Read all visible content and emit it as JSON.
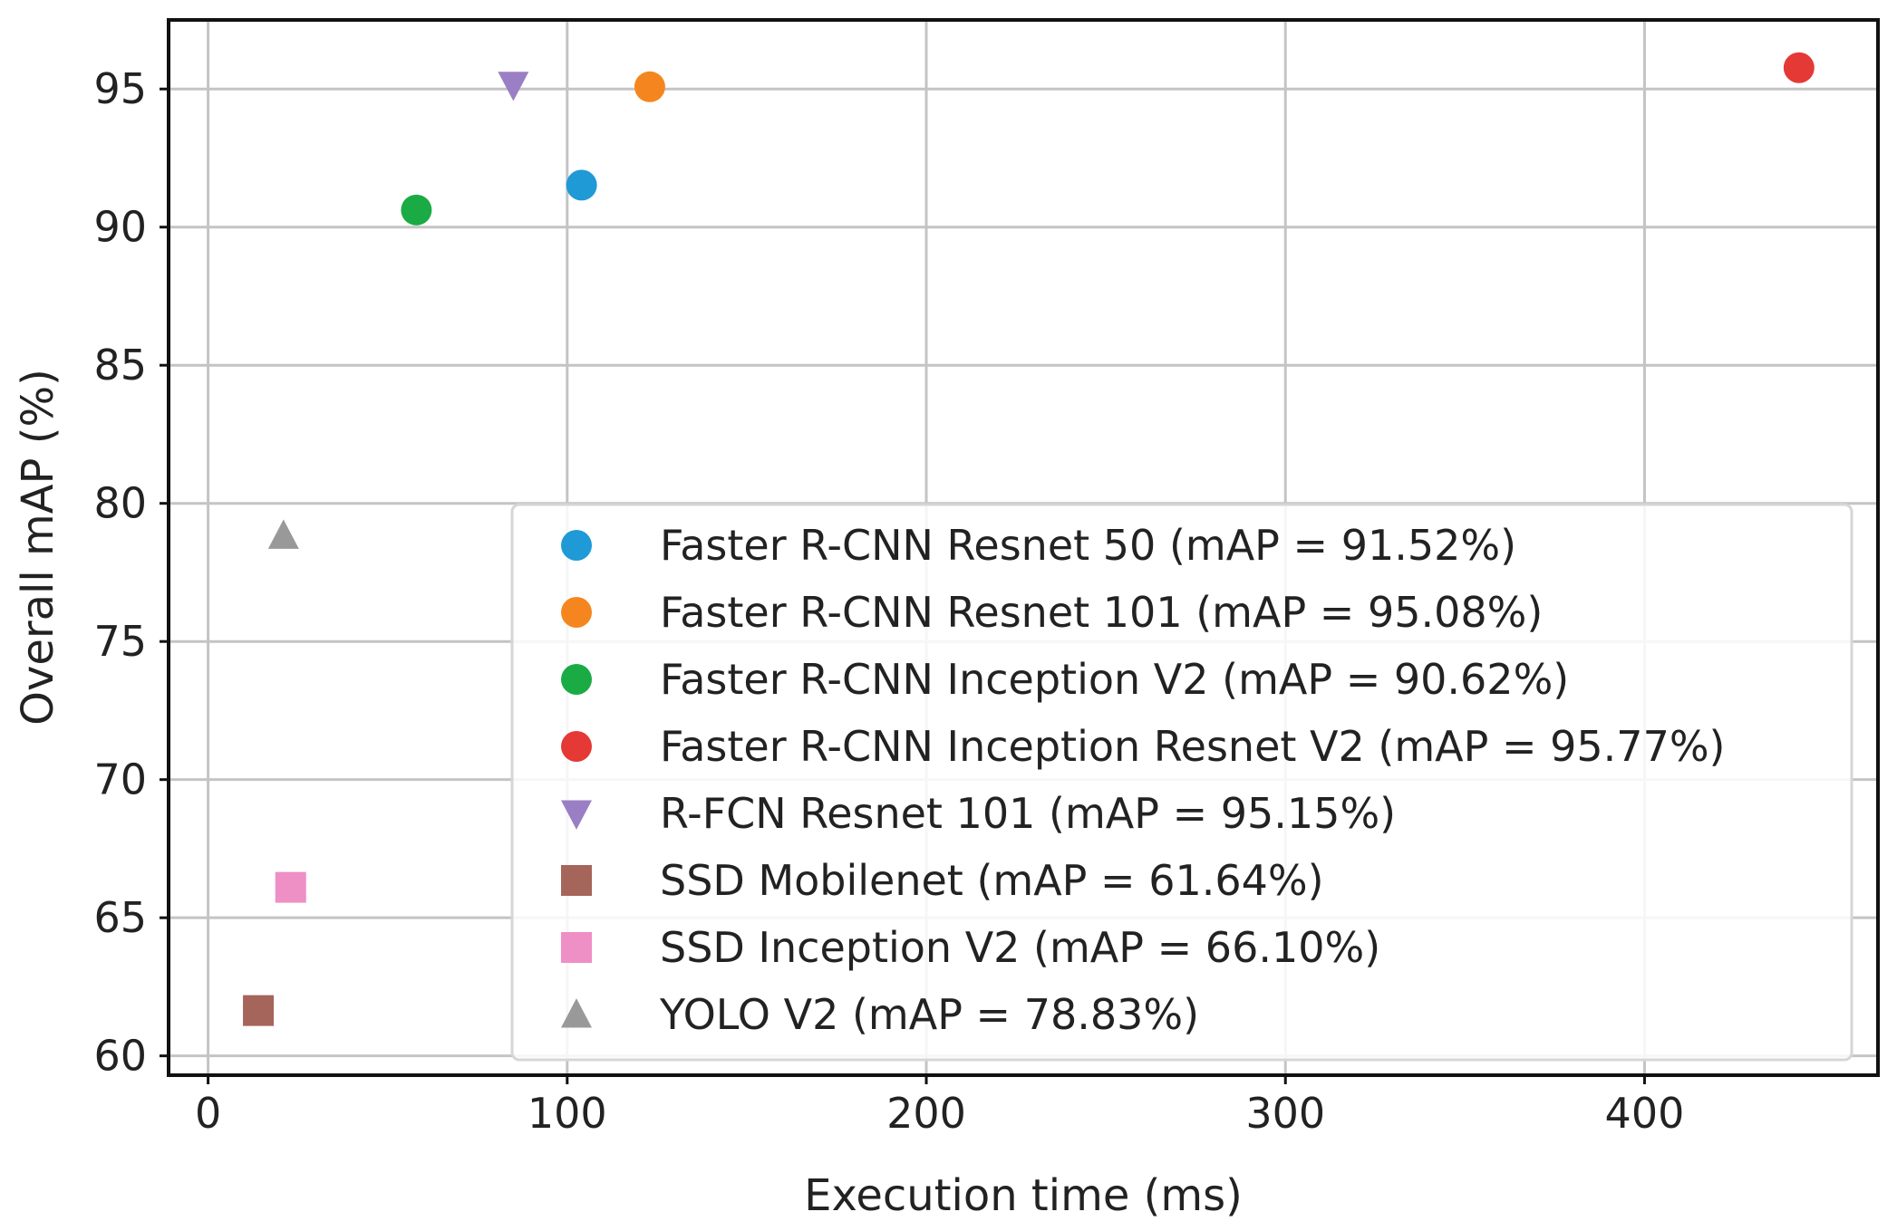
{
  "chart_data": {
    "type": "scatter",
    "title": "",
    "xlabel": "Execution time (ms)",
    "ylabel": "Overall mAP (%)",
    "xlim": [
      -11,
      465
    ],
    "ylim": [
      59.3,
      97.5
    ],
    "xticks": [
      0,
      100,
      200,
      300,
      400
    ],
    "yticks": [
      60,
      65,
      70,
      75,
      80,
      85,
      90,
      95
    ],
    "grid": true,
    "legend_position": "lower-right",
    "series": [
      {
        "name": "Faster R-CNN Resnet 50 (mAP = 91.52%)",
        "marker": "circle",
        "color": "#1f9ad6",
        "x": [
          104
        ],
        "y": [
          91.52
        ]
      },
      {
        "name": "Faster R-CNN Resnet 101 (mAP = 95.08%)",
        "marker": "circle",
        "color": "#f5861f",
        "x": [
          123
        ],
        "y": [
          95.08
        ]
      },
      {
        "name": "Faster R-CNN Inception V2 (mAP = 90.62%)",
        "marker": "circle",
        "color": "#1aab45",
        "x": [
          58
        ],
        "y": [
          90.62
        ]
      },
      {
        "name": "Faster R-CNN Inception Resnet V2 (mAP = 95.77%)",
        "marker": "circle",
        "color": "#e53935",
        "x": [
          443
        ],
        "y": [
          95.77
        ]
      },
      {
        "name": "R-FCN Resnet 101 (mAP = 95.15%)",
        "marker": "triangle-down",
        "color": "#9b7fc4",
        "x": [
          85
        ],
        "y": [
          95.15
        ]
      },
      {
        "name": "SSD Mobilenet (mAP = 61.64%)",
        "marker": "square",
        "color": "#a5655a",
        "x": [
          14
        ],
        "y": [
          61.64
        ]
      },
      {
        "name": "SSD Inception V2 (mAP = 66.10%)",
        "marker": "square",
        "color": "#ee8fc5",
        "x": [
          23
        ],
        "y": [
          66.1
        ]
      },
      {
        "name": "YOLO V2 (mAP = 78.83%)",
        "marker": "triangle-up",
        "color": "#999999",
        "x": [
          21
        ],
        "y": [
          78.83
        ]
      }
    ]
  }
}
